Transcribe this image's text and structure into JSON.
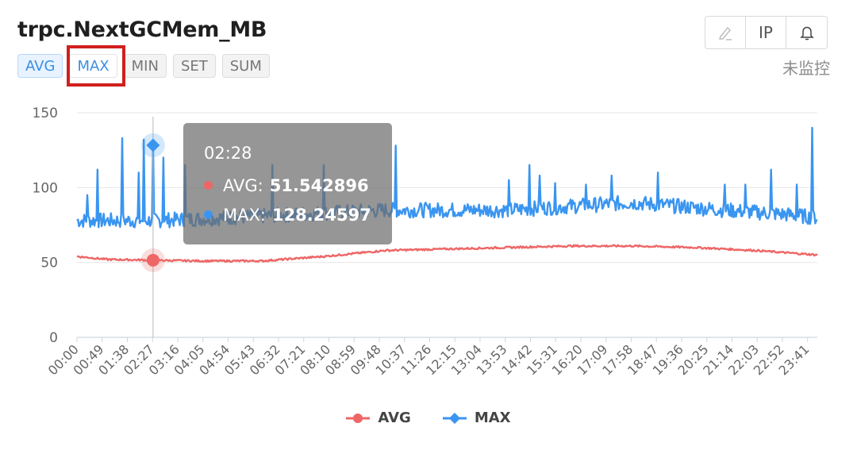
{
  "header": {
    "title": "trpc.NextGCMem_MB",
    "tabs": [
      {
        "label": "AVG",
        "state": "active"
      },
      {
        "label": "MAX",
        "state": "highlight"
      },
      {
        "label": "MIN",
        "state": "normal"
      },
      {
        "label": "SET",
        "state": "normal"
      },
      {
        "label": "SUM",
        "state": "normal"
      }
    ],
    "toolbar": {
      "edit_icon": "pencil-icon",
      "ip_label": "IP",
      "alarm_icon": "bell-icon"
    },
    "monitor_status": "未监控"
  },
  "tooltip": {
    "time": "02:28",
    "rows": [
      {
        "name": "AVG",
        "value": "51.542896",
        "color": "#ee6666"
      },
      {
        "name": "MAX",
        "value": "128.24597",
        "color": "#3a95f0"
      }
    ]
  },
  "colors": {
    "avg": "#ee6666",
    "max": "#3a95f0",
    "accent": "#3a8ee6",
    "highlight_box": "#d0201d"
  },
  "chart_data": {
    "type": "line",
    "title": "",
    "xlabel": "",
    "ylabel": "",
    "ylim": [
      0,
      150
    ],
    "yticks": [
      0,
      50,
      100,
      150
    ],
    "x_range_minutes": [
      0,
      1440
    ],
    "xticks": [
      "00:00",
      "00:49",
      "01:38",
      "02:27",
      "03:16",
      "04:05",
      "04:54",
      "05:43",
      "06:32",
      "07:21",
      "08:10",
      "08:59",
      "09:48",
      "10:37",
      "11:26",
      "12:15",
      "13:04",
      "13:53",
      "14:42",
      "15:31",
      "16:20",
      "17:09",
      "17:58",
      "18:47",
      "19:36",
      "20:25",
      "21:14",
      "22:03",
      "22:52",
      "23:41"
    ],
    "grid": true,
    "legend_position": "bottom",
    "series": [
      {
        "name": "AVG",
        "keypoints": [
          [
            0,
            54
          ],
          [
            60,
            52
          ],
          [
            150,
            51.5
          ],
          [
            240,
            51
          ],
          [
            360,
            51
          ],
          [
            480,
            54
          ],
          [
            600,
            58
          ],
          [
            720,
            59
          ],
          [
            840,
            60
          ],
          [
            960,
            61
          ],
          [
            1080,
            61
          ],
          [
            1200,
            60
          ],
          [
            1320,
            58
          ],
          [
            1440,
            55
          ]
        ],
        "noise": 0.6
      },
      {
        "name": "MAX",
        "keypoints": [
          [
            0,
            78
          ],
          [
            150,
            78
          ],
          [
            300,
            80
          ],
          [
            420,
            82
          ],
          [
            600,
            85
          ],
          [
            840,
            85
          ],
          [
            1080,
            90
          ],
          [
            1260,
            85
          ],
          [
            1380,
            82
          ],
          [
            1440,
            80
          ]
        ],
        "noise": 5,
        "spikes": [
          [
            20,
            95
          ],
          [
            40,
            112
          ],
          [
            55,
            120
          ],
          [
            75,
            118
          ],
          [
            88,
            133
          ],
          [
            105,
            125
          ],
          [
            120,
            110
          ],
          [
            130,
            132
          ],
          [
            148,
            128
          ],
          [
            168,
            120
          ],
          [
            210,
            115
          ],
          [
            255,
            112
          ],
          [
            325,
            127
          ],
          [
            380,
            115
          ],
          [
            480,
            115
          ],
          [
            620,
            128
          ],
          [
            840,
            105
          ],
          [
            880,
            115
          ],
          [
            900,
            108
          ],
          [
            930,
            103
          ],
          [
            990,
            102
          ],
          [
            1040,
            108
          ],
          [
            1130,
            110
          ],
          [
            1215,
            113
          ],
          [
            1260,
            102
          ],
          [
            1300,
            102
          ],
          [
            1350,
            112
          ],
          [
            1400,
            102
          ],
          [
            1430,
            140
          ]
        ],
        "highlight": {
          "x": 148,
          "y": 128.24597
        }
      }
    ]
  }
}
